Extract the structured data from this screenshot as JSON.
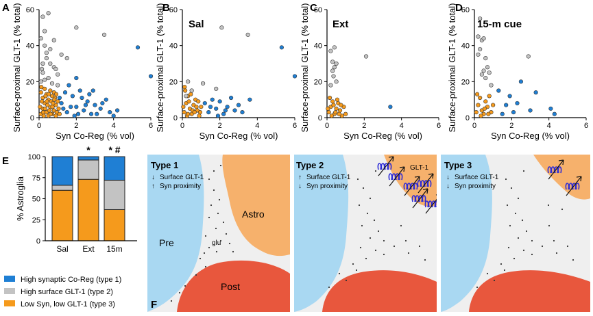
{
  "colors": {
    "type1": "#1f7fd4",
    "type2": "#c3c3c3",
    "type3": "#f59a1c",
    "pre": "#a9d8f2",
    "astro": "#f6b16c",
    "post": "#e8573d",
    "bg": "#efefef",
    "receptor": "#2d2bd6"
  },
  "panels": {
    "A": {
      "letter": "A",
      "title": ""
    },
    "B": {
      "letter": "B",
      "title": "Sal"
    },
    "C": {
      "letter": "C",
      "title": "Ext"
    },
    "D": {
      "letter": "D",
      "title": "15-m cue"
    },
    "E": {
      "letter": "E"
    },
    "F": {
      "letter": "F"
    }
  },
  "scatter_axes": {
    "ylabel": "Surface-proximal GLT-1 (% total)",
    "xlabel": "Syn Co-Reg (% vol)",
    "xticks": [
      "0",
      "2",
      "4",
      "6"
    ],
    "yticks": [
      "0",
      "20",
      "40",
      "60"
    ]
  },
  "chart_data": [
    {
      "type": "scatter",
      "panel": "A",
      "title": "",
      "xlabel": "Syn Co-Reg (% vol)",
      "ylabel": "Surface-proximal GLT-1 (% total)",
      "xlim": [
        0,
        6
      ],
      "ylim": [
        0,
        60
      ],
      "series": [
        {
          "name": "High synaptic Co-Reg (type 1)",
          "color_key": "type1",
          "points": [
            [
              1.2,
              8
            ],
            [
              1.5,
              3
            ],
            [
              1.8,
              12
            ],
            [
              2.0,
              6
            ],
            [
              2.2,
              15
            ],
            [
              2.4,
              4
            ],
            [
              2.6,
              9
            ],
            [
              2.8,
              2
            ],
            [
              3.0,
              7
            ],
            [
              3.3,
              5
            ],
            [
              3.6,
              10
            ],
            [
              3.8,
              3
            ],
            [
              4.0,
              1
            ],
            [
              1.6,
              18
            ],
            [
              1.9,
              1
            ],
            [
              2.3,
              11
            ],
            [
              2.7,
              13
            ],
            [
              3.1,
              2
            ],
            [
              1.4,
              14
            ],
            [
              1.7,
              6
            ],
            [
              2.1,
              2
            ],
            [
              2.5,
              7
            ],
            [
              3.4,
              8
            ],
            [
              4.2,
              4
            ],
            [
              2.0,
              22
            ],
            [
              1.3,
              5
            ],
            [
              5.3,
              39
            ],
            [
              6.0,
              23
            ],
            [
              1.1,
              11
            ],
            [
              2.9,
              15
            ]
          ]
        },
        {
          "name": "High surface GLT-1 (type 2)",
          "color_key": "type2",
          "points": [
            [
              0.1,
              44
            ],
            [
              0.2,
              56
            ],
            [
              0.5,
              58
            ],
            [
              0.3,
              40
            ],
            [
              0.4,
              33
            ],
            [
              0.6,
              30
            ],
            [
              0.2,
              25
            ],
            [
              0.8,
              28
            ],
            [
              0.1,
              20
            ],
            [
              0.3,
              21
            ],
            [
              0.5,
              22
            ],
            [
              0.7,
              19
            ],
            [
              1.0,
              24
            ],
            [
              0.9,
              27
            ],
            [
              0.2,
              30
            ],
            [
              0.4,
              36
            ],
            [
              0.6,
              38
            ],
            [
              0.8,
              43
            ],
            [
              1.2,
              35
            ],
            [
              1.5,
              33
            ],
            [
              0.3,
              48
            ],
            [
              2.0,
              50
            ],
            [
              3.5,
              46
            ],
            [
              1.0,
              18
            ],
            [
              0.15,
              27
            ]
          ]
        },
        {
          "name": "Low Syn, low GLT-1 (type 3)",
          "color_key": "type3",
          "points": [
            [
              0.1,
              2
            ],
            [
              0.2,
              5
            ],
            [
              0.3,
              8
            ],
            [
              0.4,
              3
            ],
            [
              0.5,
              10
            ],
            [
              0.6,
              6
            ],
            [
              0.7,
              12
            ],
            [
              0.8,
              4
            ],
            [
              0.9,
              7
            ],
            [
              1.0,
              9
            ],
            [
              0.1,
              14
            ],
            [
              0.2,
              11
            ],
            [
              0.3,
              16
            ],
            [
              0.4,
              13
            ],
            [
              0.5,
              1
            ],
            [
              0.6,
              15
            ],
            [
              0.7,
              2
            ],
            [
              0.8,
              14
            ],
            [
              0.9,
              1
            ],
            [
              0.05,
              6
            ],
            [
              0.15,
              9
            ],
            [
              0.25,
              1
            ],
            [
              0.35,
              12
            ],
            [
              0.45,
              7
            ],
            [
              0.55,
              4
            ],
            [
              0.65,
              9
            ],
            [
              0.75,
              8
            ],
            [
              0.85,
              11
            ],
            [
              0.95,
              3
            ],
            [
              1.05,
              5
            ],
            [
              0.12,
              17
            ],
            [
              0.22,
              3
            ],
            [
              0.32,
              5
            ],
            [
              0.42,
              9
            ],
            [
              0.52,
              13
            ],
            [
              0.62,
              2
            ],
            [
              0.72,
              6
            ],
            [
              0.82,
              10
            ],
            [
              0.92,
              13
            ],
            [
              1.1,
              2
            ]
          ]
        }
      ]
    },
    {
      "type": "scatter",
      "panel": "B",
      "title": "Sal",
      "xlabel": "Syn Co-Reg (% vol)",
      "ylabel": "Surface-proximal GLT-1 (% total)",
      "xlim": [
        0,
        6
      ],
      "ylim": [
        0,
        60
      ],
      "series": [
        {
          "name": "type1",
          "color_key": "type1",
          "points": [
            [
              1.2,
              8
            ],
            [
              1.4,
              3
            ],
            [
              1.6,
              10
            ],
            [
              1.8,
              5
            ],
            [
              2.0,
              9
            ],
            [
              2.2,
              2
            ],
            [
              2.4,
              6
            ],
            [
              2.6,
              11
            ],
            [
              2.8,
              4
            ],
            [
              3.0,
              7
            ],
            [
              3.2,
              3
            ],
            [
              3.6,
              10
            ],
            [
              1.9,
              1
            ],
            [
              1.5,
              6
            ],
            [
              2.3,
              4
            ],
            [
              5.3,
              39
            ],
            [
              6.0,
              23
            ]
          ]
        },
        {
          "name": "type2",
          "color_key": "type2",
          "points": [
            [
              0.2,
              12
            ],
            [
              0.5,
              15
            ],
            [
              2.1,
              50
            ],
            [
              3.5,
              46
            ],
            [
              1.1,
              19
            ],
            [
              0.3,
              20
            ],
            [
              1.8,
              16
            ]
          ]
        },
        {
          "name": "type3",
          "color_key": "type3",
          "points": [
            [
              0.1,
              3
            ],
            [
              0.2,
              8
            ],
            [
              0.3,
              12
            ],
            [
              0.4,
              5
            ],
            [
              0.5,
              2
            ],
            [
              0.6,
              7
            ],
            [
              0.7,
              10
            ],
            [
              0.8,
              4
            ],
            [
              0.9,
              1
            ],
            [
              1.0,
              6
            ],
            [
              0.15,
              15
            ],
            [
              0.25,
              1
            ],
            [
              0.35,
              9
            ],
            [
              0.45,
              13
            ],
            [
              0.55,
              4
            ],
            [
              0.65,
              3
            ],
            [
              0.75,
              6
            ],
            [
              0.85,
              9
            ],
            [
              0.95,
              3
            ],
            [
              0.05,
              6
            ],
            [
              0.12,
              17
            ],
            [
              0.3,
              2
            ]
          ]
        }
      ]
    },
    {
      "type": "scatter",
      "panel": "C",
      "title": "Ext",
      "xlabel": "Syn Co-Reg (% vol)",
      "ylabel": "Surface-proximal GLT-1 (% total)",
      "xlim": [
        0,
        6
      ],
      "ylim": [
        0,
        60
      ],
      "series": [
        {
          "name": "type1",
          "color_key": "type1",
          "points": [
            [
              3.4,
              6
            ]
          ]
        },
        {
          "name": "type2",
          "color_key": "type2",
          "points": [
            [
              0.2,
              37
            ],
            [
              0.4,
              39
            ],
            [
              0.3,
              31
            ],
            [
              0.5,
              30
            ],
            [
              0.4,
              28
            ],
            [
              0.3,
              26
            ],
            [
              0.2,
              18
            ],
            [
              0.5,
              20
            ],
            [
              2.1,
              34
            ],
            [
              0.35,
              23
            ]
          ]
        },
        {
          "name": "type3",
          "color_key": "type3",
          "points": [
            [
              0.1,
              3
            ],
            [
              0.2,
              6
            ],
            [
              0.3,
              9
            ],
            [
              0.4,
              2
            ],
            [
              0.5,
              5
            ],
            [
              0.6,
              8
            ],
            [
              0.7,
              4
            ],
            [
              0.8,
              1
            ],
            [
              0.9,
              6
            ],
            [
              1.0,
              2
            ],
            [
              0.15,
              11
            ],
            [
              0.25,
              1
            ],
            [
              0.35,
              7
            ],
            [
              0.45,
              3
            ],
            [
              0.55,
              10
            ],
            [
              0.65,
              2
            ],
            [
              0.05,
              5
            ],
            [
              0.75,
              7
            ]
          ]
        }
      ]
    },
    {
      "type": "scatter",
      "panel": "D",
      "title": "15-m cue",
      "xlabel": "Syn Co-Reg (% vol)",
      "ylabel": "Surface-proximal GLT-1 (% total)",
      "xlim": [
        0,
        6
      ],
      "ylim": [
        0,
        60
      ],
      "series": [
        {
          "name": "type1",
          "color_key": "type1",
          "points": [
            [
              1.3,
              15
            ],
            [
              1.7,
              7
            ],
            [
              1.9,
              12
            ],
            [
              2.1,
              3
            ],
            [
              2.3,
              8
            ],
            [
              2.5,
              20
            ],
            [
              3.0,
              4
            ],
            [
              3.3,
              14
            ],
            [
              4.1,
              5
            ],
            [
              4.3,
              2
            ],
            [
              1.5,
              2
            ]
          ]
        },
        {
          "name": "type2",
          "color_key": "type2",
          "points": [
            [
              0.3,
              55
            ],
            [
              0.2,
              45
            ],
            [
              0.4,
              43
            ],
            [
              0.5,
              44
            ],
            [
              0.3,
              38
            ],
            [
              0.6,
              33
            ],
            [
              0.5,
              26
            ],
            [
              0.7,
              28
            ],
            [
              0.4,
              24
            ],
            [
              0.8,
              25
            ],
            [
              0.6,
              22
            ],
            [
              0.2,
              35
            ],
            [
              2.9,
              34
            ],
            [
              0.9,
              18
            ]
          ]
        },
        {
          "name": "type3",
          "color_key": "type3",
          "points": [
            [
              0.1,
              3
            ],
            [
              0.2,
              7
            ],
            [
              0.3,
              11
            ],
            [
              0.4,
              4
            ],
            [
              0.5,
              2
            ],
            [
              0.6,
              9
            ],
            [
              0.7,
              6
            ],
            [
              0.8,
              12
            ],
            [
              0.9,
              3
            ],
            [
              1.0,
              7
            ],
            [
              0.15,
              13
            ],
            [
              0.35,
              1
            ],
            [
              0.55,
              5
            ],
            [
              0.75,
              2
            ]
          ]
        }
      ]
    },
    {
      "type": "bar",
      "panel": "E",
      "stacked": true,
      "categories": [
        "Sal",
        "Ext",
        "15m"
      ],
      "ylabel": "% Astroglia",
      "ylim": [
        0,
        100
      ],
      "yticks": [
        "0",
        "25",
        "50",
        "75",
        "100"
      ],
      "significance": [
        "",
        "*",
        "* #"
      ],
      "series": [
        {
          "name": "Low Syn, low GLT-1 (type 3)",
          "color_key": "type3",
          "values": [
            60,
            73,
            37
          ]
        },
        {
          "name": "High surface GLT-1 (type 2)",
          "color_key": "type2",
          "values": [
            6,
            23,
            35
          ]
        },
        {
          "name": "High synaptic Co-Reg (type 1)",
          "color_key": "type1",
          "values": [
            34,
            4,
            28
          ]
        }
      ]
    }
  ],
  "legend": [
    {
      "label": "High synaptic Co-Reg (type 1)",
      "color_key": "type1"
    },
    {
      "label": "High surface GLT-1 (type 2)",
      "color_key": "type2"
    },
    {
      "label": "Low Syn, low GLT-1 (type 3)",
      "color_key": "type3"
    }
  ],
  "schematic": {
    "panel1": {
      "title": "Type 1",
      "line1": "Surface GLT-1",
      "arrow1": "↓",
      "line2": "Syn proximity",
      "arrow2": "↑",
      "pre": "Pre",
      "astro": "Astro",
      "post": "Post",
      "glu": "glu"
    },
    "panel2": {
      "title": "Type 2",
      "line1": "Surface GLT-1",
      "arrow1": "↑",
      "line2": "Syn proximity",
      "arrow2": "↓",
      "glt": "GLT-1"
    },
    "panel3": {
      "title": "Type 3",
      "line1": "Surface GLT-1",
      "arrow1": "↓",
      "line2": "Syn proximity",
      "arrow2": "↓"
    }
  }
}
